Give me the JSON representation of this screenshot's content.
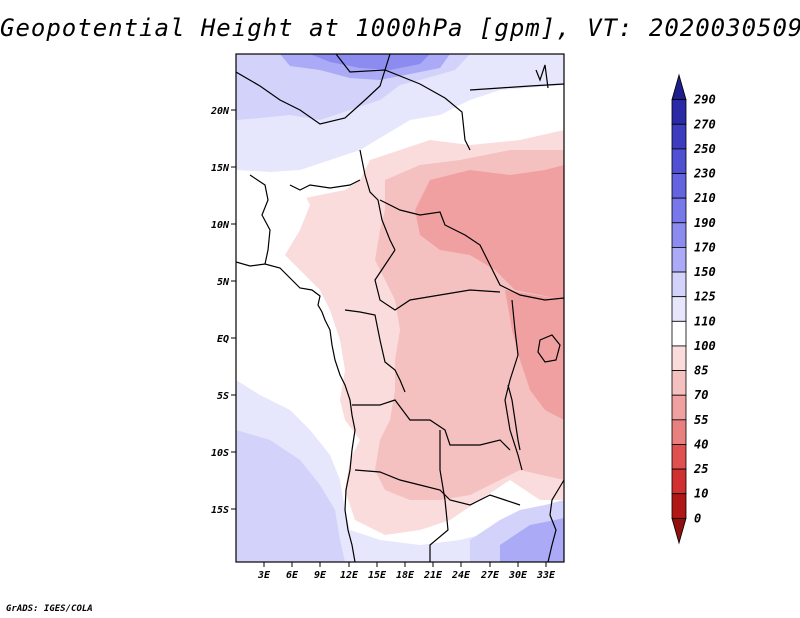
{
  "title": "Geopotential Height at 1000hPa [gpm], VT: 2020030509",
  "credit": "GrADS: IGES/COLA",
  "axes": {
    "lat_labels": [
      "20N",
      "15N",
      "10N",
      "5N",
      "EQ",
      "5S",
      "10S",
      "15S"
    ],
    "lon_labels": [
      "3E",
      "6E",
      "9E",
      "12E",
      "15E",
      "18E",
      "21E",
      "24E",
      "27E",
      "30E",
      "33E"
    ]
  },
  "legend": {
    "levels": [
      "290",
      "270",
      "250",
      "230",
      "210",
      "190",
      "170",
      "150",
      "125",
      "110",
      "100",
      "85",
      "70",
      "55",
      "40",
      "25",
      "10",
      "0"
    ],
    "colors": [
      "#1e1e8c",
      "#2a2aa6",
      "#3c3cbe",
      "#5050d2",
      "#6464e0",
      "#7878ea",
      "#8c8cf0",
      "#aaaaf6",
      "#d2d2fa",
      "#e6e6fc",
      "#ffffff",
      "#fadcdc",
      "#f5c0c0",
      "#f0a0a0",
      "#e88080",
      "#e05050",
      "#d03030",
      "#b01818",
      "#901010"
    ]
  },
  "colors": {
    "frame": "#000000",
    "background": "#ffffff"
  }
}
